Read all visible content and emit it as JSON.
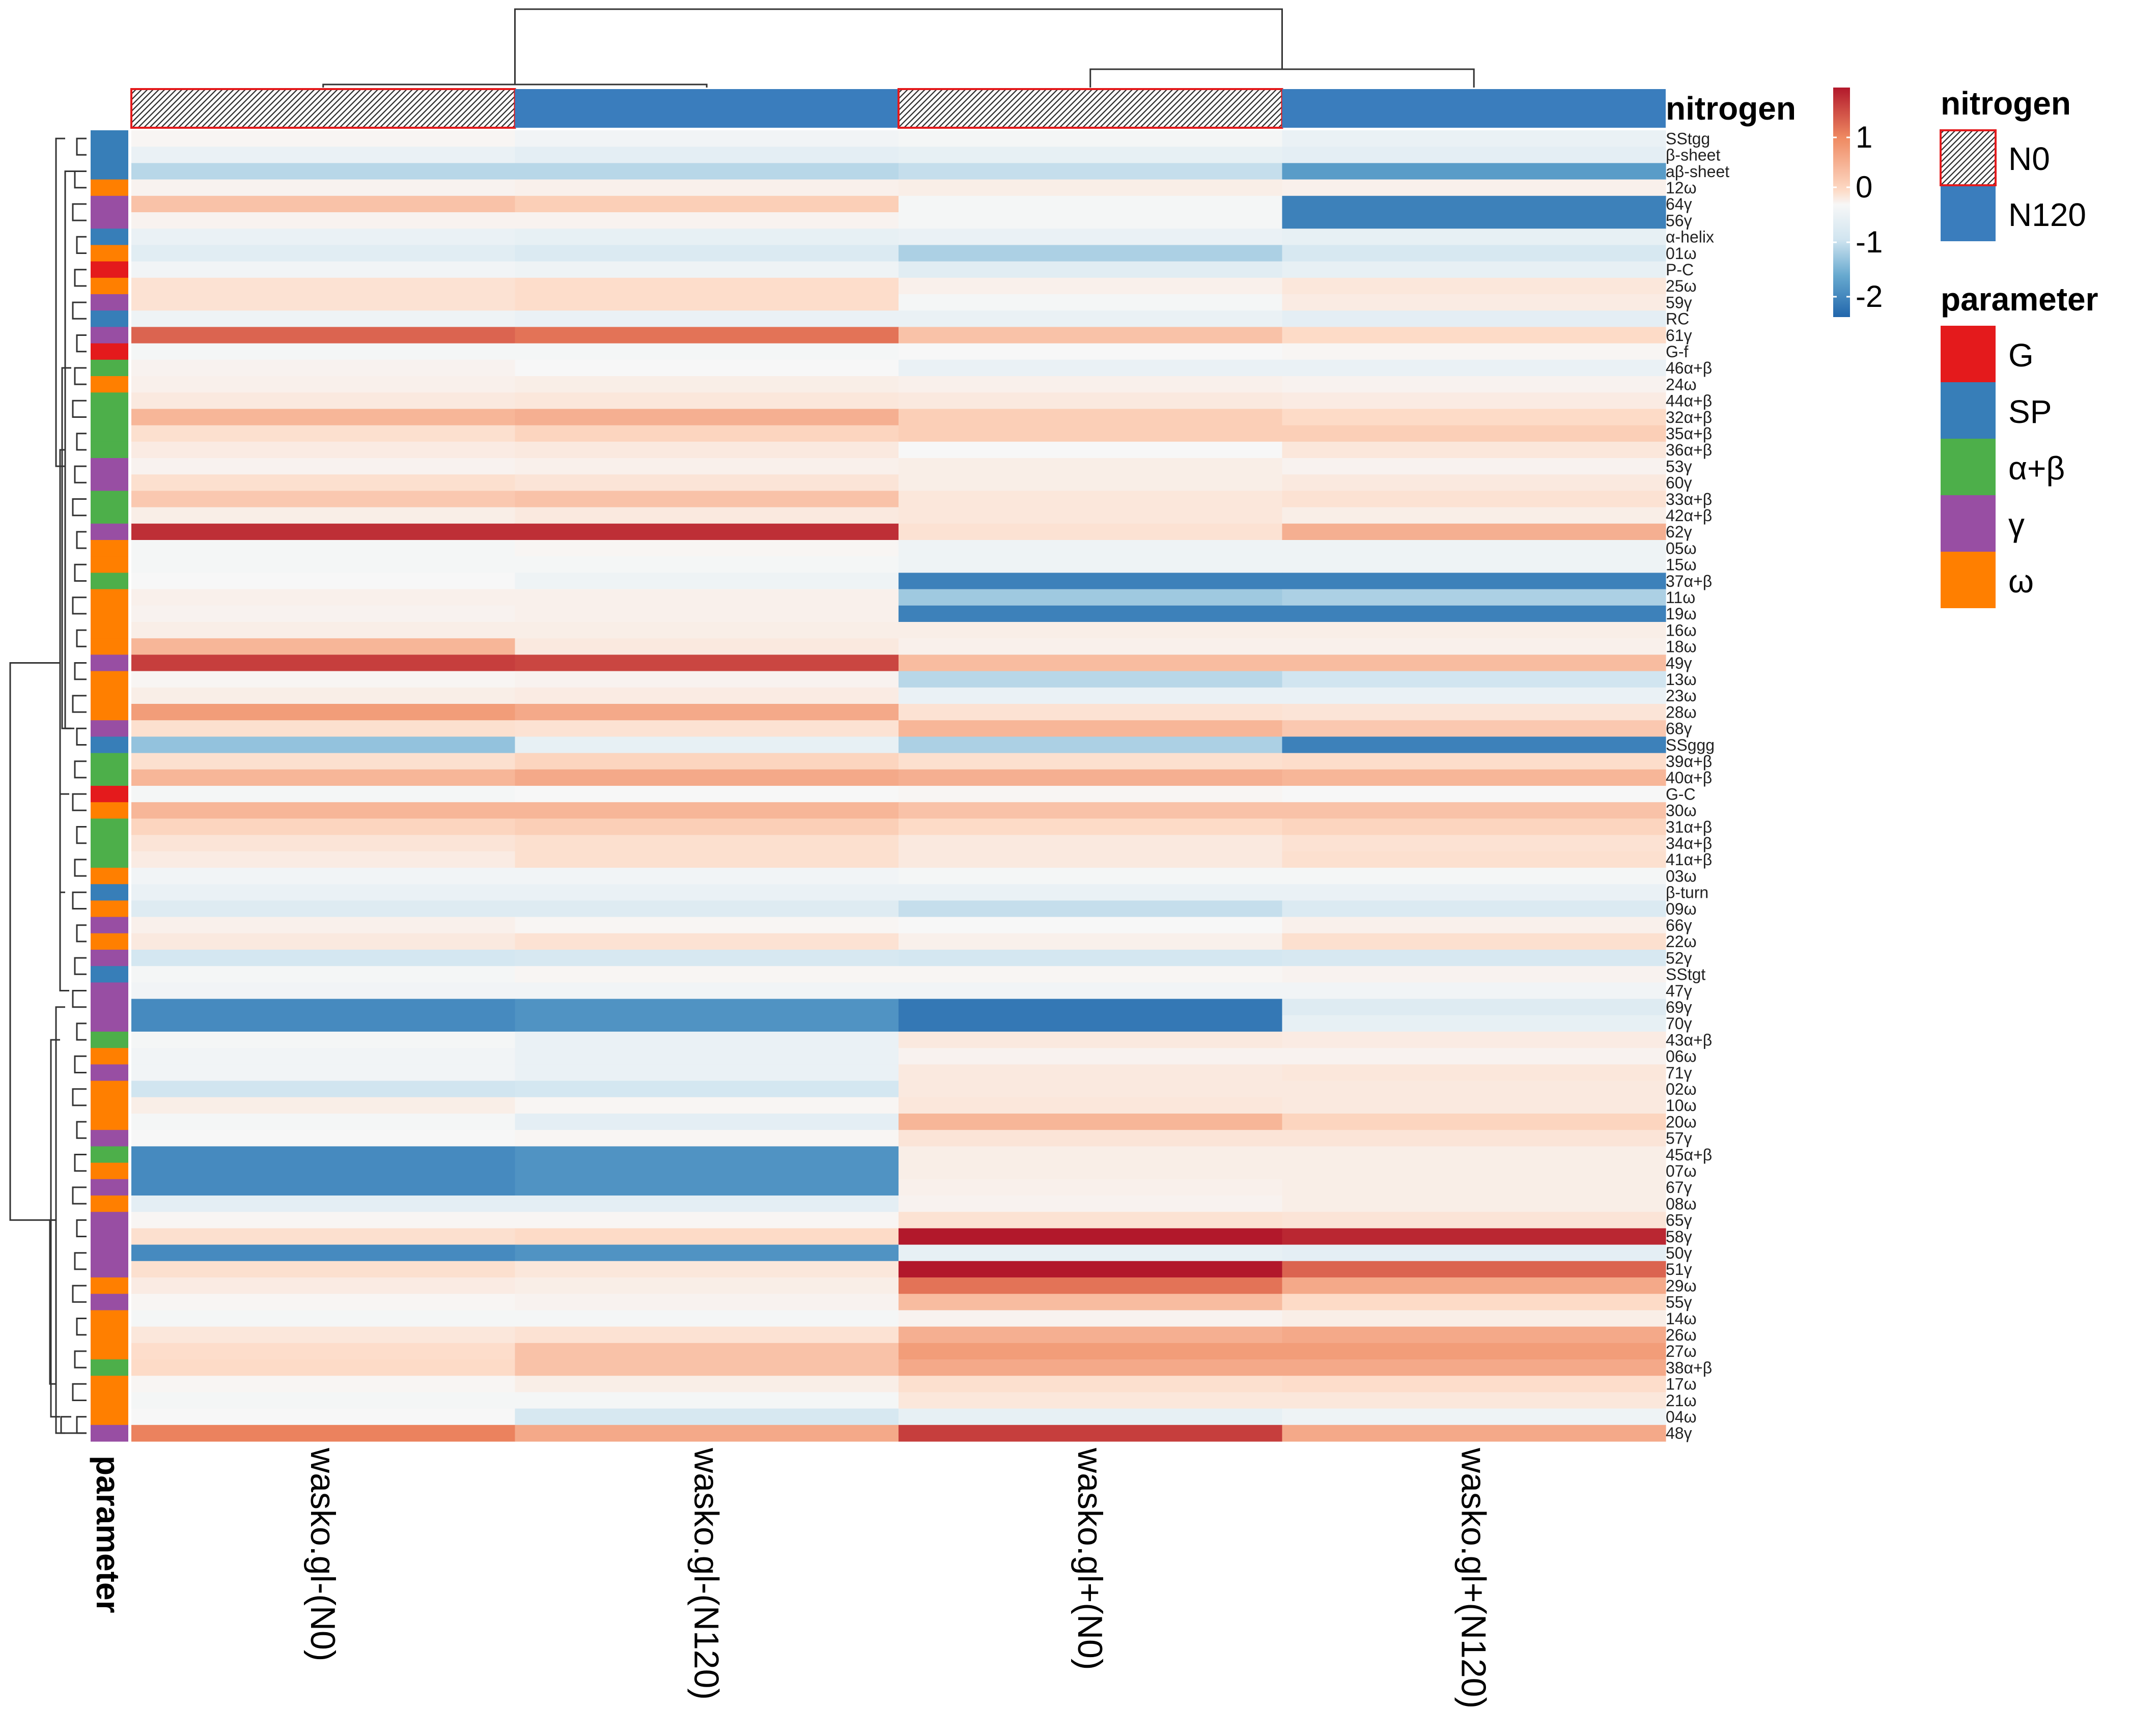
{
  "chart_data": {
    "type": "heatmap",
    "columns": [
      "wasko.gl-(N0)",
      "wasko.gl-(N120)",
      "wasko.gl+(N0)",
      "wasko.gl+(N120)"
    ],
    "column_nitrogen": [
      "N0",
      "N120",
      "N0",
      "N120"
    ],
    "rows": [
      "SStgg",
      "β-sheet",
      "aβ-sheet",
      "12ω",
      "64γ",
      "56γ",
      "α-helix",
      "01ω",
      "P-C",
      "25ω",
      "59γ",
      "RC",
      "61γ",
      "G-f",
      "46α+β",
      "24ω",
      "44α+β",
      "32α+β",
      "35α+β",
      "36α+β",
      "53γ",
      "60γ",
      "33α+β",
      "42α+β",
      "62γ",
      "05ω",
      "15ω",
      "37α+β",
      "11ω",
      "19ω",
      "16ω",
      "18ω",
      "49γ",
      "13ω",
      "23ω",
      "28ω",
      "68γ",
      "SSggg",
      "39α+β",
      "40α+β",
      "G-C",
      "30ω",
      "31α+β",
      "34α+β",
      "41α+β",
      "03ω",
      "β-turn",
      "09ω",
      "66γ",
      "22ω",
      "52γ",
      "SStgt",
      "47γ",
      "69γ",
      "70γ",
      "43α+β",
      "06ω",
      "71γ",
      "02ω",
      "10ω",
      "20ω",
      "57γ",
      "45α+β",
      "07ω",
      "67γ",
      "08ω",
      "65γ",
      "58γ",
      "50γ",
      "51γ",
      "29ω",
      "55γ",
      "14ω",
      "26ω",
      "27ω",
      "38α+β",
      "17ω",
      "21ω",
      "04ω",
      "48γ"
    ],
    "row_parameter": [
      "SP",
      "SP",
      "SP",
      "ω",
      "γ",
      "γ",
      "SP",
      "ω",
      "G",
      "ω",
      "γ",
      "SP",
      "γ",
      "G",
      "α+β",
      "ω",
      "α+β",
      "α+β",
      "α+β",
      "α+β",
      "γ",
      "γ",
      "α+β",
      "α+β",
      "γ",
      "ω",
      "ω",
      "α+β",
      "ω",
      "ω",
      "ω",
      "ω",
      "γ",
      "ω",
      "ω",
      "ω",
      "γ",
      "SP",
      "α+β",
      "α+β",
      "G",
      "ω",
      "α+β",
      "α+β",
      "α+β",
      "ω",
      "SP",
      "ω",
      "γ",
      "ω",
      "γ",
      "SP",
      "γ",
      "γ",
      "γ",
      "α+β",
      "ω",
      "γ",
      "ω",
      "ω",
      "ω",
      "γ",
      "α+β",
      "ω",
      "γ",
      "ω",
      "γ",
      "γ",
      "γ",
      "γ",
      "ω",
      "γ",
      "ω",
      "ω",
      "ω",
      "α+β",
      "ω",
      "ω",
      "ω",
      "γ"
    ],
    "values": [
      [
        0.05,
        -0.1,
        -0.05,
        -0.2
      ],
      [
        -0.2,
        -0.3,
        -0.25,
        -0.3
      ],
      [
        -0.8,
        -0.8,
        -0.7,
        -1.6
      ],
      [
        0.1,
        0.15,
        0.2,
        0.15
      ],
      [
        0.8,
        0.7,
        -0.05,
        -1.9
      ],
      [
        0.1,
        0.1,
        -0.05,
        -1.9
      ],
      [
        -0.2,
        -0.25,
        -0.2,
        -0.25
      ],
      [
        -0.35,
        -0.45,
        -0.9,
        -0.5
      ],
      [
        -0.1,
        -0.15,
        -0.35,
        -0.25
      ],
      [
        0.45,
        0.55,
        0.15,
        0.35
      ],
      [
        0.45,
        0.55,
        -0.05,
        0.25
      ],
      [
        -0.15,
        -0.2,
        -0.2,
        -0.3
      ],
      [
        1.5,
        1.4,
        0.8,
        0.6
      ],
      [
        -0.05,
        -0.05,
        0.0,
        0.05
      ],
      [
        0.1,
        0.0,
        -0.2,
        -0.2
      ],
      [
        0.15,
        0.2,
        0.15,
        0.1
      ],
      [
        0.3,
        0.35,
        0.3,
        0.25
      ],
      [
        0.9,
        0.95,
        0.7,
        0.6
      ],
      [
        0.5,
        0.65,
        0.7,
        0.7
      ],
      [
        0.25,
        0.3,
        0.0,
        0.35
      ],
      [
        0.1,
        0.15,
        0.2,
        0.1
      ],
      [
        0.5,
        0.4,
        0.2,
        0.3
      ],
      [
        0.75,
        0.8,
        0.35,
        0.45
      ],
      [
        0.2,
        0.3,
        0.35,
        0.2
      ],
      [
        1.85,
        1.85,
        0.45,
        0.95
      ],
      [
        -0.05,
        0.05,
        -0.15,
        -0.15
      ],
      [
        -0.05,
        -0.05,
        -0.15,
        -0.15
      ],
      [
        0.0,
        -0.15,
        -1.9,
        -1.9
      ],
      [
        0.15,
        0.15,
        -1.0,
        -0.9
      ],
      [
        0.1,
        0.15,
        -1.9,
        -1.9
      ],
      [
        0.2,
        0.2,
        0.2,
        0.2
      ],
      [
        0.9,
        0.3,
        0.15,
        0.15
      ],
      [
        1.75,
        1.7,
        0.85,
        0.85
      ],
      [
        0.05,
        0.1,
        -0.8,
        -0.6
      ],
      [
        0.2,
        0.25,
        -0.2,
        -0.2
      ],
      [
        1.1,
        1.0,
        0.45,
        0.4
      ],
      [
        0.5,
        0.45,
        0.9,
        0.75
      ],
      [
        -1.1,
        -0.25,
        -0.9,
        -1.9
      ],
      [
        0.5,
        0.65,
        0.5,
        0.55
      ],
      [
        0.9,
        1.0,
        0.95,
        0.9
      ],
      [
        -0.05,
        0.0,
        0.05,
        0.0
      ],
      [
        0.9,
        0.9,
        0.8,
        0.8
      ],
      [
        0.65,
        0.7,
        0.6,
        0.65
      ],
      [
        0.4,
        0.5,
        0.3,
        0.45
      ],
      [
        0.25,
        0.5,
        0.3,
        0.5
      ],
      [
        -0.1,
        -0.1,
        -0.05,
        -0.05
      ],
      [
        -0.2,
        -0.2,
        -0.2,
        -0.2
      ],
      [
        -0.4,
        -0.4,
        -0.7,
        -0.45
      ],
      [
        0.15,
        0.05,
        0.0,
        0.15
      ],
      [
        0.3,
        0.45,
        0.15,
        0.5
      ],
      [
        -0.55,
        -0.5,
        -0.55,
        -0.5
      ],
      [
        -0.05,
        0.05,
        0.05,
        0.1
      ],
      [
        -0.1,
        -0.1,
        -0.1,
        -0.1
      ],
      [
        -1.8,
        -1.7,
        -2.0,
        -0.4
      ],
      [
        -1.8,
        -1.7,
        -2.0,
        -0.25
      ],
      [
        -0.05,
        -0.2,
        0.3,
        0.25
      ],
      [
        -0.1,
        -0.2,
        0.1,
        0.1
      ],
      [
        -0.1,
        -0.2,
        0.3,
        0.35
      ],
      [
        -0.6,
        -0.55,
        0.3,
        0.3
      ],
      [
        0.2,
        0.05,
        0.35,
        0.3
      ],
      [
        -0.05,
        -0.3,
        0.9,
        0.65
      ],
      [
        0.0,
        0.05,
        0.4,
        0.4
      ],
      [
        -1.8,
        -1.7,
        0.2,
        0.2
      ],
      [
        -1.8,
        -1.7,
        0.2,
        0.2
      ],
      [
        -1.8,
        -1.7,
        0.15,
        0.2
      ],
      [
        -0.3,
        -0.3,
        0.1,
        0.2
      ],
      [
        0.05,
        0.05,
        0.45,
        0.4
      ],
      [
        0.5,
        0.6,
        2.0,
        1.9
      ],
      [
        -1.8,
        -1.7,
        -0.25,
        -0.3
      ],
      [
        0.5,
        0.35,
        2.0,
        1.5
      ],
      [
        0.25,
        0.2,
        1.4,
        1.0
      ],
      [
        0.05,
        0.1,
        0.85,
        0.6
      ],
      [
        -0.05,
        -0.05,
        0.1,
        0.2
      ],
      [
        0.35,
        0.45,
        0.95,
        1.0
      ],
      [
        0.55,
        0.8,
        1.1,
        1.1
      ],
      [
        0.6,
        0.8,
        1.0,
        1.0
      ],
      [
        0.05,
        0.2,
        0.5,
        0.55
      ],
      [
        -0.05,
        -0.05,
        0.35,
        0.35
      ],
      [
        0.0,
        -0.5,
        -0.25,
        -0.15
      ],
      [
        1.3,
        1.0,
        1.75,
        1.0
      ]
    ],
    "legend": {
      "colorbar_ticks": [
        "1",
        "0",
        "-1",
        "-2"
      ],
      "nitrogen_title": "nitrogen",
      "nitrogen_levels": [
        "N0",
        "N120"
      ],
      "parameter_title": "parameter",
      "parameter_levels": [
        "G",
        "SP",
        "α+β",
        "γ",
        "ω"
      ]
    },
    "col_annotation_label": "nitrogen",
    "row_annotation_label": "parameter",
    "colors": {
      "low": "#2166ac",
      "mid": "#f7f7f7",
      "high": "#b2182b",
      "N0": "#333333",
      "N120": "#3a7dbd",
      "G": "#e41a1c",
      "SP": "#377eb8",
      "α+β": "#4daf4a",
      "γ": "#984ea3",
      "ω": "#ff7f00"
    },
    "value_range": [
      -2.2,
      2.0
    ],
    "col_dendrogram": true,
    "row_dendrogram": true
  }
}
